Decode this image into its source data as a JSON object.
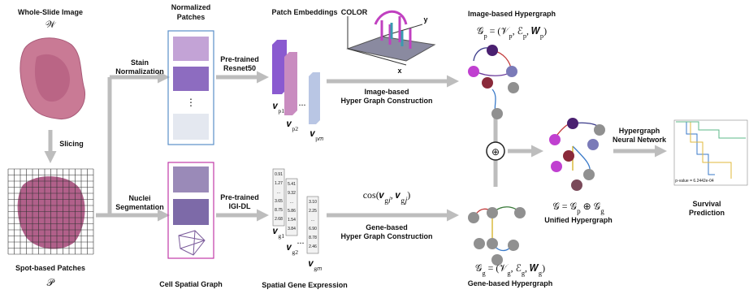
{
  "wsi": {
    "title": "Whole-Slide Image",
    "symbol": "𝒲"
  },
  "slicing": "Slicing",
  "spot": {
    "title": "Spot-based Patches",
    "symbol": "𝒫"
  },
  "stain": [
    "Stain",
    "Normalization"
  ],
  "nuclei": [
    "Nuclei",
    "Segmentation"
  ],
  "normalized": {
    "title": [
      "Normalized",
      "Patches"
    ],
    "dots": "⋮"
  },
  "cell_graph": "Cell Spatial Graph",
  "resnet": [
    "Pre-trained",
    "Resnet50"
  ],
  "igi": [
    "Pre-trained",
    "IGI-DL"
  ],
  "patch_embeddings": {
    "title": "Patch Embeddings",
    "labels": [
      [
        [
          "𝒗",
          "p1"
        ]
      ],
      [
        [
          "𝒗",
          "p2"
        ]
      ],
      [
        [
          "𝒗",
          "p𝑚"
        ]
      ]
    ],
    "dots": "..."
  },
  "gene_expression": {
    "title": "Spatial Gene Expression",
    "columns": [
      [
        "0.91",
        "1.27",
        "...",
        "3.65",
        "8.75",
        "2.68"
      ],
      [
        "5.41",
        "9.32",
        "...",
        "5.86",
        "1.54",
        "3.84"
      ],
      [
        "3.10",
        "2.25",
        "...",
        "6.90",
        "8.78",
        "2.46"
      ]
    ],
    "labels": [
      [
        [
          "𝒗",
          "g1"
        ]
      ],
      [
        [
          "𝒗",
          "g2"
        ]
      ],
      [
        [
          "𝒗",
          "g𝑚"
        ]
      ]
    ],
    "dots": "..."
  },
  "cube": {
    "color": "COLOR",
    "y": "y",
    "x": "x"
  },
  "image_construction": [
    "Image-based",
    "Hyper Graph Construction"
  ],
  "gene_construction": {
    "formula": [
      [
        "cos(𝒗",
        "g𝑖"
      ],
      [
        ", 𝒗",
        "g𝑗"
      ],
      [
        ")"
      ]
    ],
    "text": [
      "Gene-based",
      "Hyper Graph Construction"
    ]
  },
  "image_hypergraph": {
    "title": "Image-based Hypergraph",
    "formula": [
      [
        "𝒢",
        "p"
      ],
      [
        " = (𝒱",
        "p"
      ],
      [
        ", ℰ",
        "p"
      ],
      [
        ", 𝑾",
        "p"
      ],
      [
        ")"
      ]
    ]
  },
  "gene_hypergraph": {
    "title": "Gene-based Hypergraph",
    "formula": [
      [
        "𝒢",
        "g"
      ],
      [
        " = (𝒱",
        "g"
      ],
      [
        ", ℰ",
        "g"
      ],
      [
        ", 𝑾",
        "g"
      ],
      [
        ")"
      ]
    ]
  },
  "fusion": "⊕",
  "unified": {
    "title": "Unified Hypergraph",
    "formula": [
      [
        "𝒢 = 𝒢",
        "p"
      ],
      [
        " ⊕ 𝒢",
        "g"
      ]
    ]
  },
  "hgnn": [
    "Hypergraph",
    "Neural Network"
  ],
  "survival": {
    "title": [
      "Survival",
      "Prediction"
    ],
    "pvalue": "p-value = 6.2442e-04"
  }
}
